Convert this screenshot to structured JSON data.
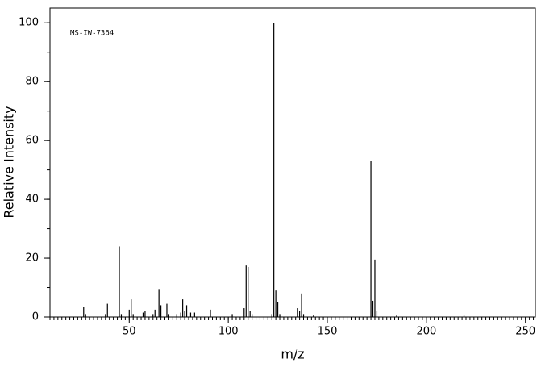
{
  "chart_data": {
    "type": "bar",
    "annotation": "MS-IW-7364",
    "xlabel": "m/z",
    "ylabel": "Relative Intensity",
    "color": "#000000",
    "x": [
      27,
      28,
      38,
      39,
      45,
      46,
      50,
      51,
      52,
      57,
      58,
      62,
      63,
      65,
      66,
      69,
      70,
      74,
      76,
      77,
      78,
      79,
      81,
      83,
      91,
      102,
      108,
      109,
      110,
      111,
      112,
      122,
      123,
      124,
      125,
      126,
      135,
      136,
      137,
      138,
      143,
      172,
      173,
      174,
      175,
      185,
      219
    ],
    "values": [
      3.5,
      1,
      1,
      4.5,
      24,
      1,
      2.5,
      6,
      1,
      1.5,
      2,
      1,
      2.5,
      9.5,
      4,
      4.5,
      1,
      1,
      1.5,
      6,
      2,
      4,
      1.5,
      1.5,
      2.5,
      1,
      3,
      17.5,
      17,
      2,
      1,
      1,
      100,
      9,
      5,
      1,
      3,
      2,
      8,
      1,
      0.5,
      53,
      5.5,
      19.5,
      2,
      0.5,
      0.5
    ],
    "xlim": [
      10,
      255
    ],
    "ylim": [
      0,
      105
    ],
    "xticks": [
      50,
      100,
      150,
      200,
      250
    ],
    "yticks": [
      0,
      20,
      40,
      60,
      80,
      100
    ],
    "x_minor_step": 2,
    "y_minor_step": 10
  }
}
